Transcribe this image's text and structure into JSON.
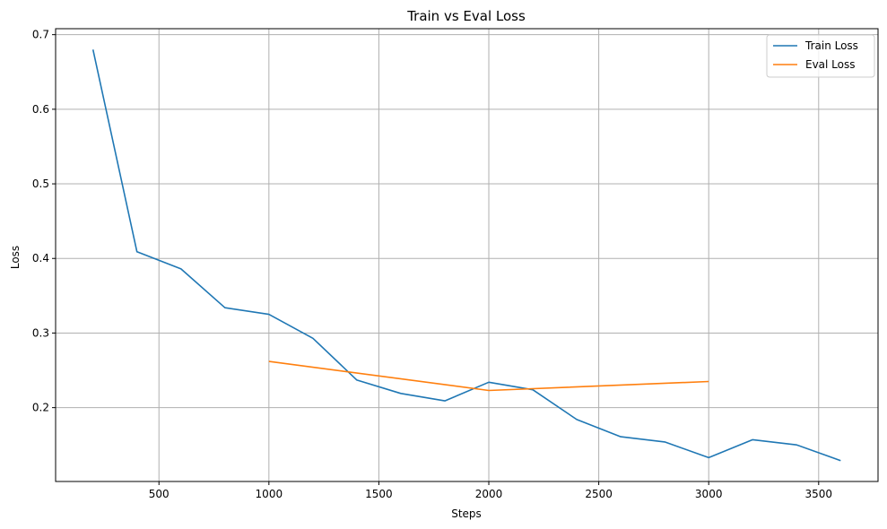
{
  "chart_data": {
    "type": "line",
    "title": "Train vs Eval Loss",
    "xlabel": "Steps",
    "ylabel": "Loss",
    "xlim": [
      30,
      3770
    ],
    "ylim": [
      0.101,
      0.708
    ],
    "xticks": [
      500,
      1000,
      1500,
      2000,
      2500,
      3000,
      3500
    ],
    "yticks": [
      0.2,
      0.3,
      0.4,
      0.5,
      0.6,
      0.7
    ],
    "grid": true,
    "legend_position": "top-right",
    "series": [
      {
        "name": "Train Loss",
        "color": "#1f77b4",
        "x": [
          200,
          400,
          600,
          800,
          1000,
          1200,
          1400,
          1600,
          1800,
          2000,
          2200,
          2400,
          2600,
          2800,
          3000,
          3200,
          3400,
          3600
        ],
        "y": [
          0.68,
          0.409,
          0.386,
          0.334,
          0.325,
          0.293,
          0.237,
          0.219,
          0.209,
          0.234,
          0.224,
          0.184,
          0.161,
          0.154,
          0.133,
          0.157,
          0.15,
          0.129
        ]
      },
      {
        "name": "Eval Loss",
        "color": "#ff7f0e",
        "x": [
          1000,
          2000,
          3000
        ],
        "y": [
          0.262,
          0.223,
          0.235
        ]
      }
    ]
  }
}
